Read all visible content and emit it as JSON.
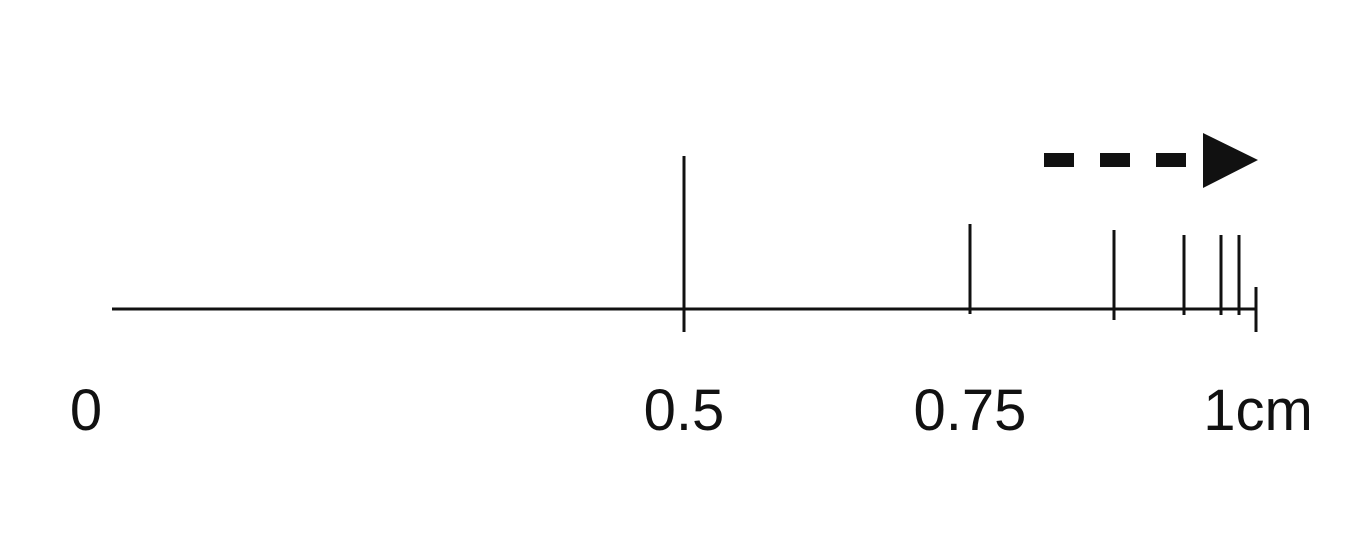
{
  "number_line": {
    "labels": {
      "zero": "0",
      "half": "0.5",
      "three_quarters": "0.75",
      "one": "1cm"
    },
    "ticks": [
      0.5,
      0.75,
      0.875,
      0.9375,
      0.96875,
      0.984375,
      1.0
    ],
    "range": [
      0,
      1
    ],
    "unit": "cm"
  },
  "arrow": {
    "direction": "right",
    "style": "dashed",
    "icon": "dashed-arrow-right-icon"
  },
  "colors": {
    "ink": "#111111",
    "background": "#ffffff"
  }
}
